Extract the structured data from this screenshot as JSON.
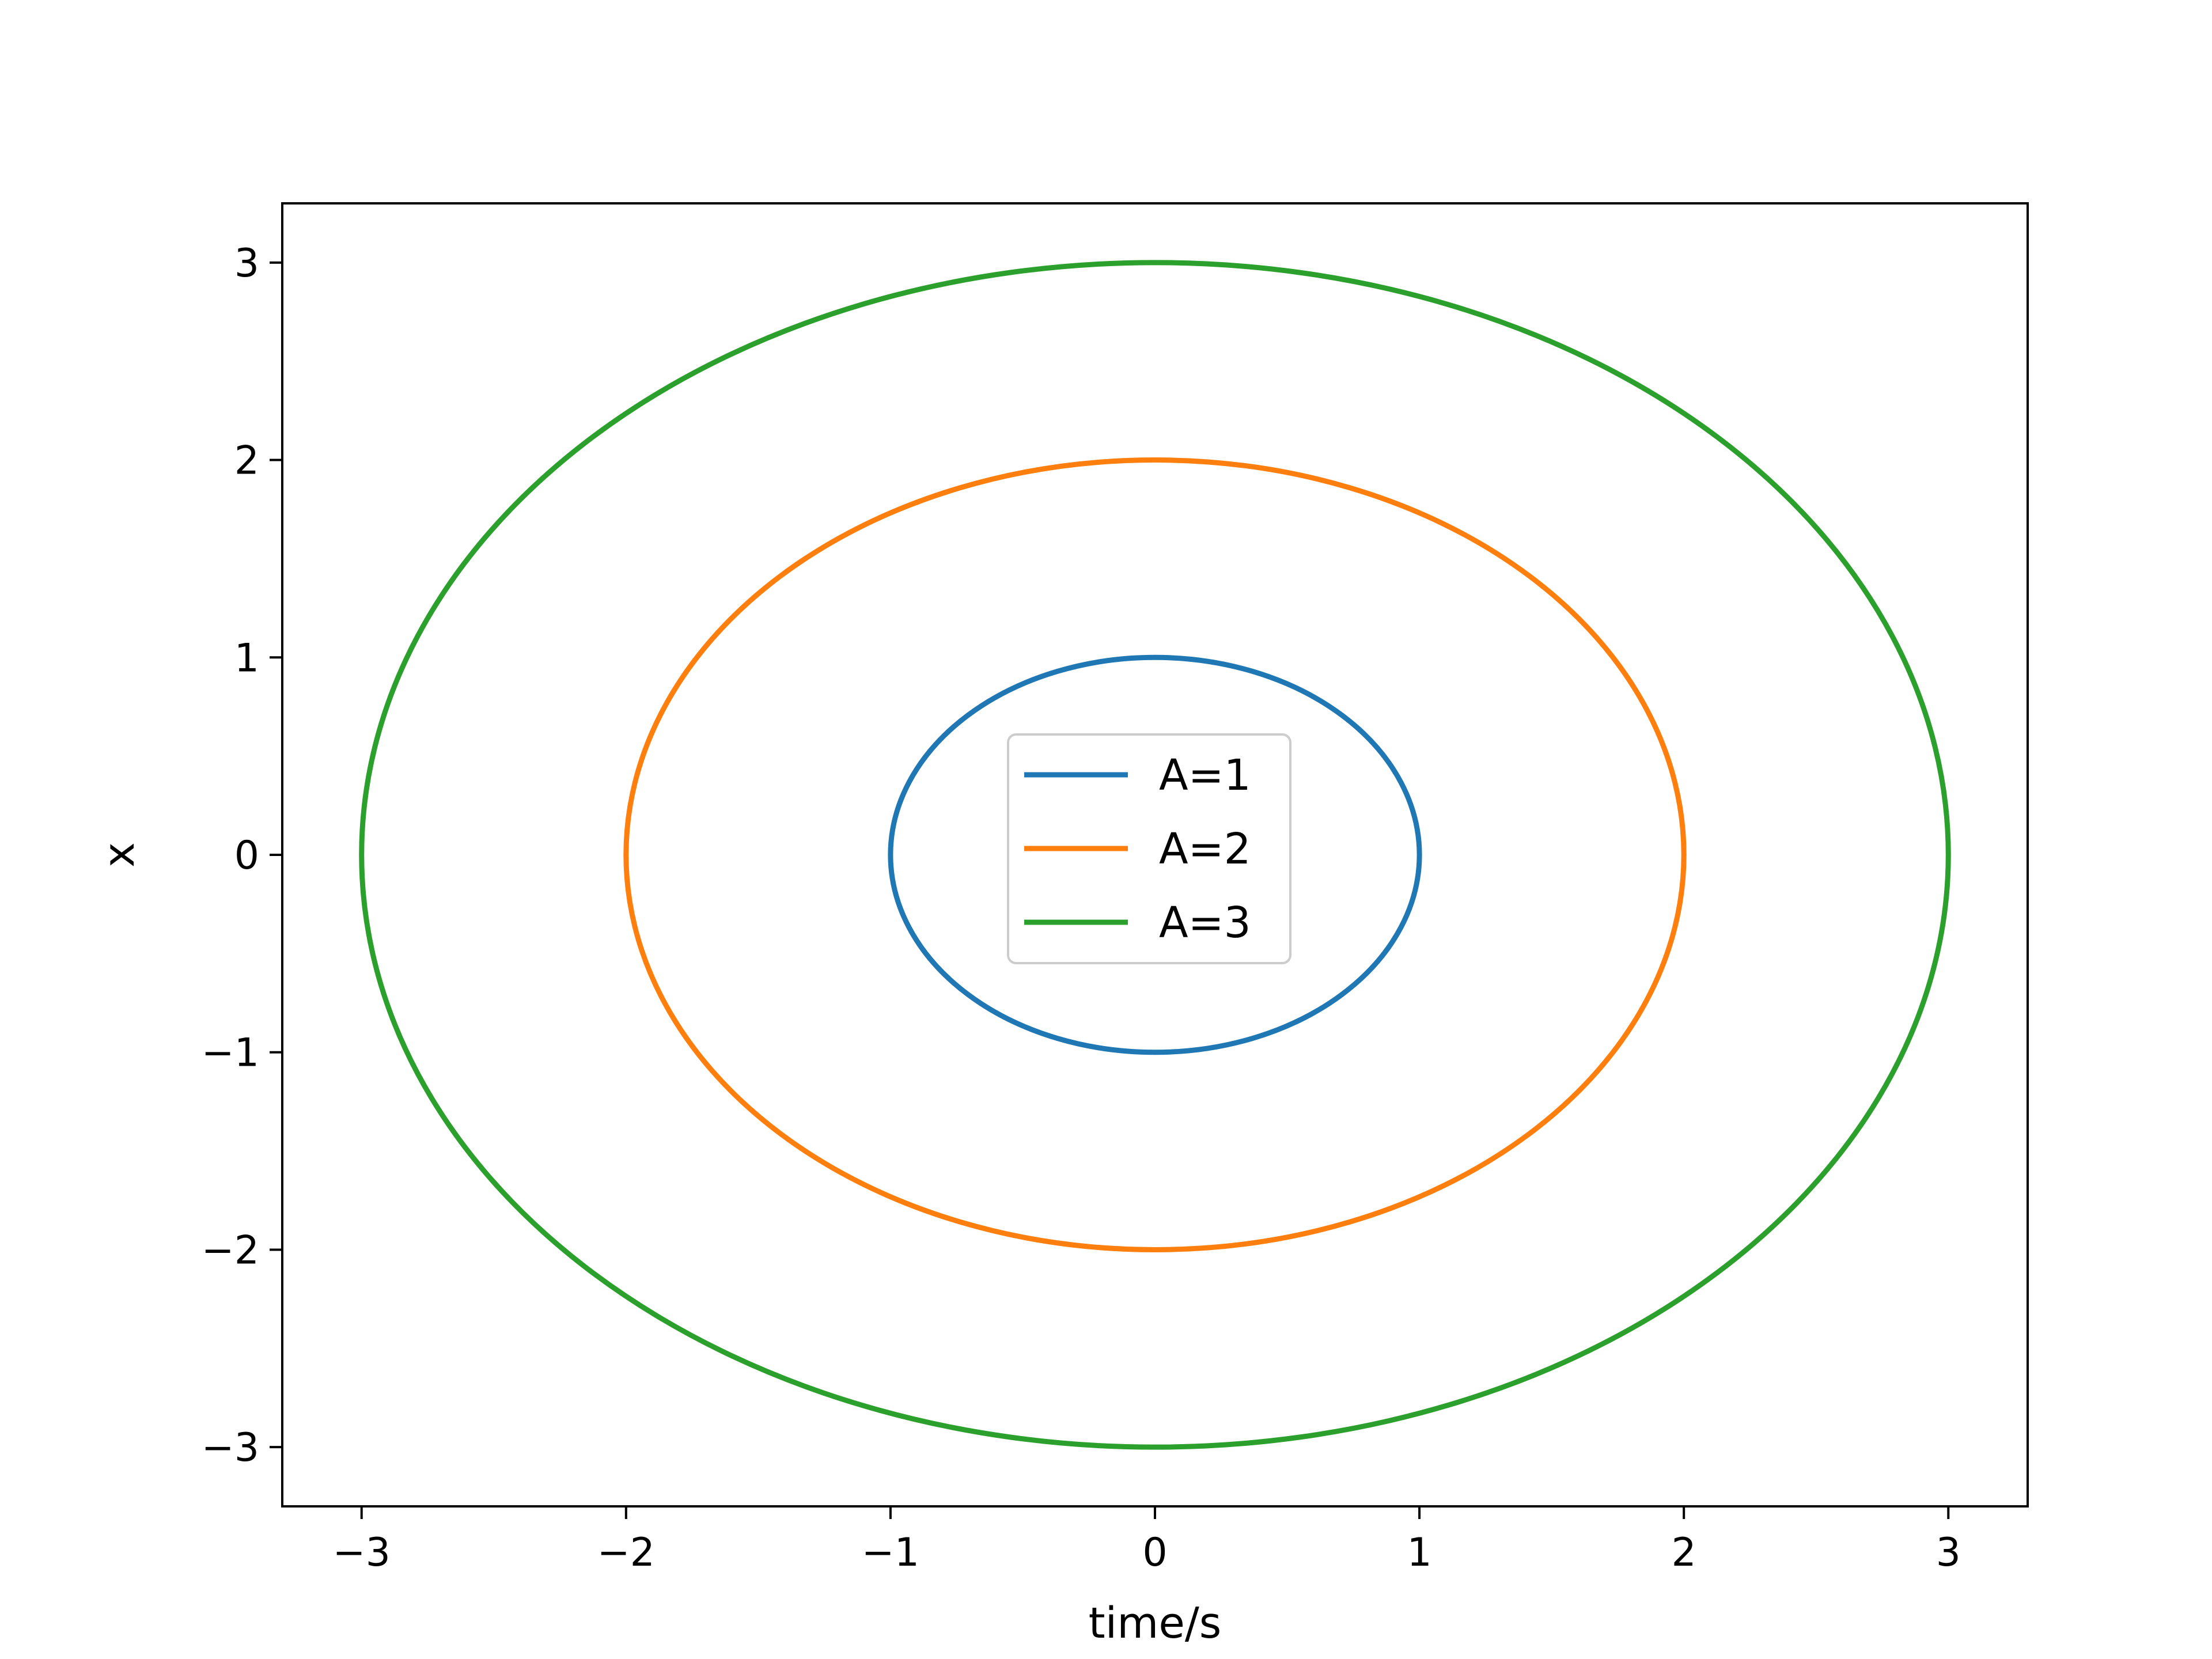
{
  "chart_data": {
    "type": "line",
    "title": "",
    "xlabel": "time/s",
    "ylabel": "x",
    "xlim": [
      -3.3,
      3.3
    ],
    "ylim": [
      -3.3,
      3.3
    ],
    "xticks": [
      -3,
      -2,
      -1,
      0,
      1,
      2,
      3
    ],
    "yticks": [
      -3,
      -2,
      -1,
      0,
      1,
      2,
      3
    ],
    "xtick_labels": [
      "−3",
      "−2",
      "−1",
      "0",
      "1",
      "2",
      "3"
    ],
    "ytick_labels": [
      "−3",
      "−2",
      "−1",
      "0",
      "1",
      "2",
      "3"
    ],
    "grid": false,
    "legend_position": "center",
    "series": [
      {
        "name": "A=1",
        "color": "#1f77b4",
        "shape": "circle",
        "radius": 1
      },
      {
        "name": "A=2",
        "color": "#ff7f0e",
        "shape": "circle",
        "radius": 2
      },
      {
        "name": "A=3",
        "color": "#2ca02c",
        "shape": "circle",
        "radius": 3
      }
    ]
  }
}
